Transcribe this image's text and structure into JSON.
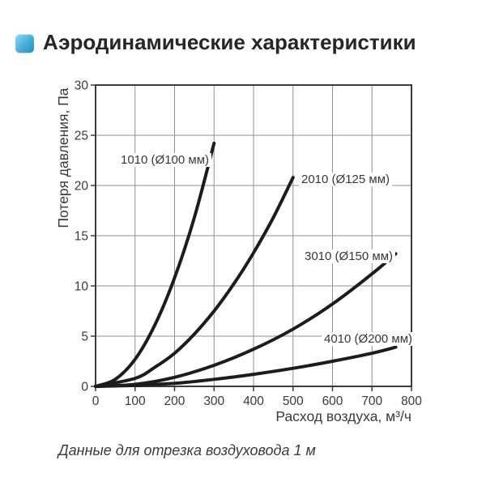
{
  "header": {
    "title": "Аэродинамические характеристики"
  },
  "chart_data": {
    "type": "line",
    "xlabel": "Расход воздуха, м³/ч",
    "ylabel": "Потеря давления, Па",
    "xlim": [
      0,
      800
    ],
    "ylim": [
      0,
      30
    ],
    "x_ticks": [
      0,
      100,
      200,
      300,
      400,
      500,
      600,
      700,
      800
    ],
    "y_ticks": [
      0,
      5,
      10,
      15,
      20,
      25,
      30
    ],
    "grid": true,
    "legend_position": "inline-labels",
    "line_color": "#1c1c1c",
    "grid_color": "#919191",
    "frame_color": "#3b3b3b",
    "text_color": "#3a3a3a",
    "series": [
      {
        "name": "1010 (Ø100 мм)",
        "points": [
          [
            0,
            0
          ],
          [
            50,
            0.7
          ],
          [
            100,
            2.7
          ],
          [
            150,
            6.1
          ],
          [
            200,
            10.8
          ],
          [
            250,
            16.8
          ],
          [
            300,
            24.2
          ]
        ]
      },
      {
        "name": "2010 (Ø125 мм)",
        "points": [
          [
            0,
            0
          ],
          [
            100,
            0.8
          ],
          [
            150,
            1.9
          ],
          [
            200,
            3.3
          ],
          [
            250,
            5.2
          ],
          [
            300,
            7.5
          ],
          [
            350,
            10.2
          ],
          [
            400,
            13.3
          ],
          [
            450,
            16.8
          ],
          [
            500,
            20.8
          ]
        ]
      },
      {
        "name": "3010 (Ø150 мм)",
        "points": [
          [
            0,
            0
          ],
          [
            100,
            0.2
          ],
          [
            200,
            0.9
          ],
          [
            300,
            2.1
          ],
          [
            400,
            3.7
          ],
          [
            500,
            5.7
          ],
          [
            600,
            8.2
          ],
          [
            700,
            11.2
          ],
          [
            760,
            13.2
          ]
        ]
      },
      {
        "name": "4010 (Ø200 мм)",
        "points": [
          [
            0,
            0
          ],
          [
            100,
            0.1
          ],
          [
            200,
            0.3
          ],
          [
            300,
            0.7
          ],
          [
            400,
            1.2
          ],
          [
            500,
            1.8
          ],
          [
            600,
            2.5
          ],
          [
            700,
            3.3
          ],
          [
            760,
            3.9
          ]
        ]
      }
    ]
  },
  "caption": "Данные для отрезка воздуховода 1 м",
  "colors": {
    "icon_gradient_top": "#93d9f2",
    "icon_gradient_bottom": "#1e8cc0",
    "title_color": "#262626"
  }
}
